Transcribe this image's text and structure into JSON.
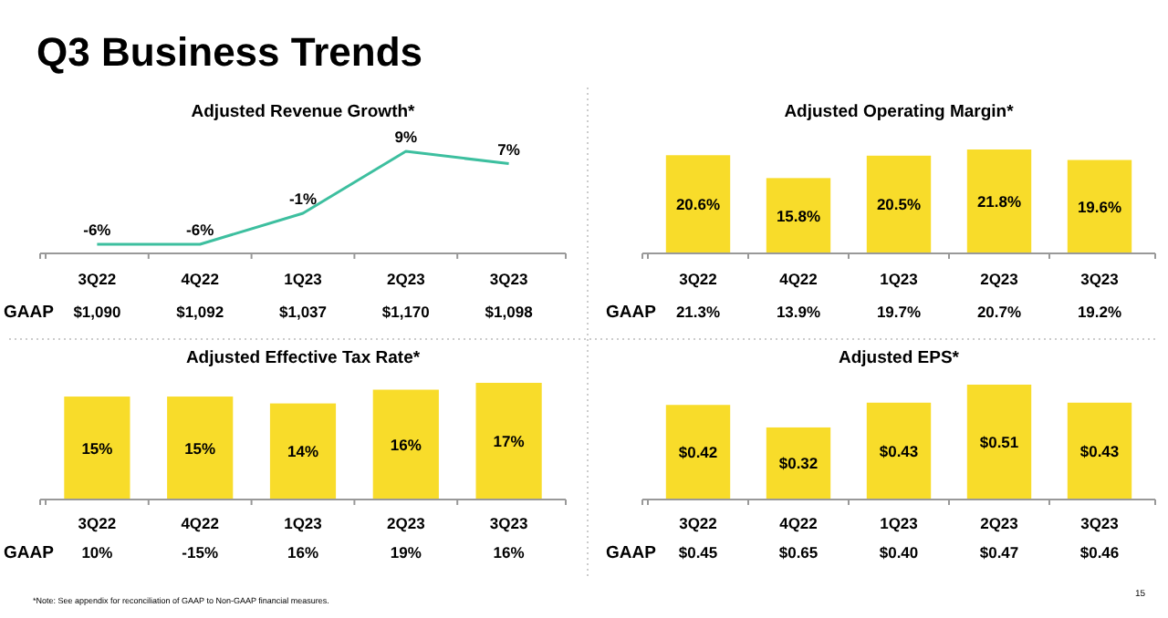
{
  "chart_data": [
    {
      "type": "other",
      "title": "Q3 Business Trends",
      "annotations": [
        "*Note: See appendix for reconciliation of GAAP to Non-GAAP financial measures.",
        "15"
      ]
    },
    {
      "type": "line",
      "title": "Adjusted Revenue Growth*",
      "categories": [
        "3Q22",
        "4Q22",
        "1Q23",
        "2Q23",
        "3Q23"
      ],
      "values": [
        -6,
        -6,
        -1,
        9,
        7
      ],
      "value_labels": [
        "-6%",
        "-6%",
        "-1%",
        "9%",
        "7%"
      ],
      "color": "#3dbf9f",
      "marker": "none",
      "annotations": [
        "GAAP",
        "$1,090",
        "$1,092",
        "$1,037",
        "$1,170",
        "$1,098"
      ]
    },
    {
      "type": "bar",
      "title": "Adjusted Operating Margin*",
      "categories": [
        "3Q22",
        "4Q22",
        "1Q23",
        "2Q23",
        "3Q23"
      ],
      "values": [
        20.6,
        15.8,
        20.5,
        21.8,
        19.6
      ],
      "value_labels": [
        "20.6%",
        "15.8%",
        "20.5%",
        "21.8%",
        "19.6%"
      ],
      "color": "#f8dc2a",
      "annotations": [
        "GAAP",
        "21.3%",
        "13.9%",
        "19.7%",
        "20.7%",
        "19.2%"
      ]
    },
    {
      "type": "bar",
      "title": "Adjusted Effective Tax Rate*",
      "categories": [
        "3Q22",
        "4Q22",
        "1Q23",
        "2Q23",
        "3Q23"
      ],
      "values": [
        15,
        15,
        14,
        16,
        17
      ],
      "value_labels": [
        "15%",
        "15%",
        "14%",
        "16%",
        "17%"
      ],
      "color": "#f8dc2a",
      "annotations": [
        "GAAP",
        "10%",
        "-15%",
        "16%",
        "19%",
        "16%"
      ]
    },
    {
      "type": "bar",
      "title": "Adjusted EPS*",
      "categories": [
        "3Q22",
        "4Q22",
        "1Q23",
        "2Q23",
        "3Q23"
      ],
      "values": [
        0.42,
        0.32,
        0.43,
        0.51,
        0.43
      ],
      "value_labels": [
        "$0.42",
        "$0.32",
        "$0.43",
        "$0.51",
        "$0.43"
      ],
      "color": "#f8dc2a",
      "annotations": [
        "GAAP",
        "$0.45",
        "$0.65",
        "$0.40",
        "$0.47",
        "$0.46"
      ]
    }
  ]
}
